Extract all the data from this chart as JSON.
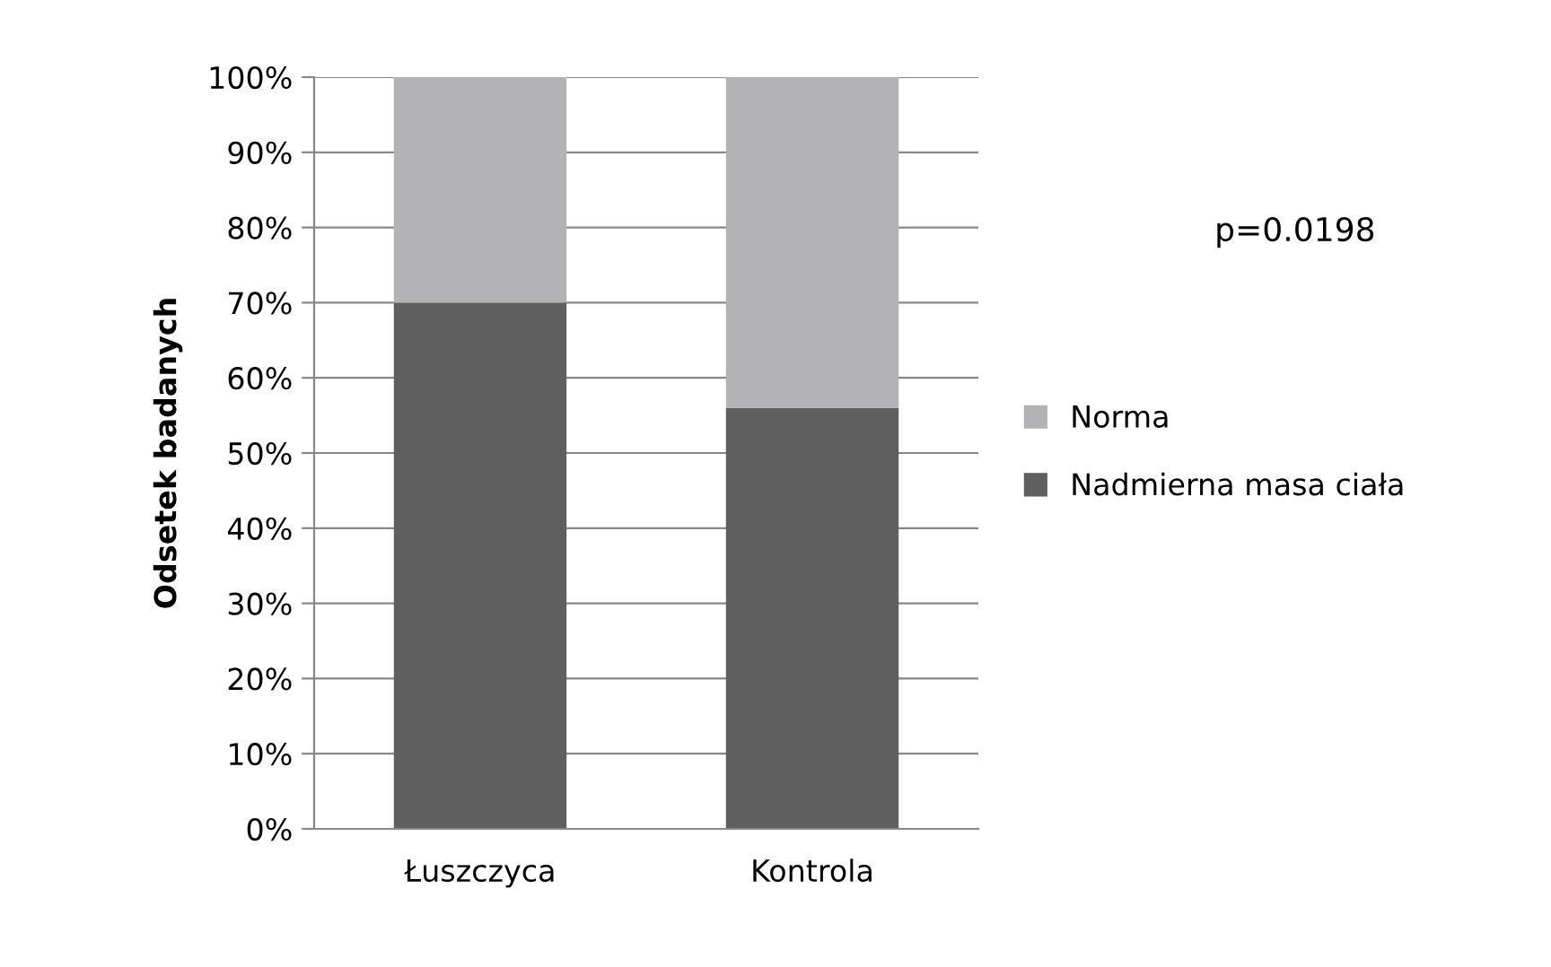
{
  "chart_data": {
    "type": "bar",
    "stacked": true,
    "ylabel": "Odsetek badanych",
    "categories": [
      "Łuszczyca",
      "Kontrola"
    ],
    "series": [
      {
        "name": "Nadmierna masa ciała",
        "color": "#5f5f5f",
        "values": [
          70,
          56
        ]
      },
      {
        "name": "Norma",
        "color": "#b3b3b5",
        "values": [
          30,
          44
        ]
      }
    ],
    "ylim": [
      0,
      100
    ],
    "yticks": [
      {
        "value": 0,
        "label": "0%"
      },
      {
        "value": 10,
        "label": "10%"
      },
      {
        "value": 20,
        "label": "20%"
      },
      {
        "value": 30,
        "label": "30%"
      },
      {
        "value": 40,
        "label": "40%"
      },
      {
        "value": 50,
        "label": "50%"
      },
      {
        "value": 60,
        "label": "60%"
      },
      {
        "value": 70,
        "label": "70%"
      },
      {
        "value": 80,
        "label": "80%"
      },
      {
        "value": 90,
        "label": "90%"
      },
      {
        "value": 100,
        "label": "100%"
      }
    ],
    "grid": "y",
    "legend": "right",
    "annotations": [
      "p=0.0198"
    ]
  }
}
